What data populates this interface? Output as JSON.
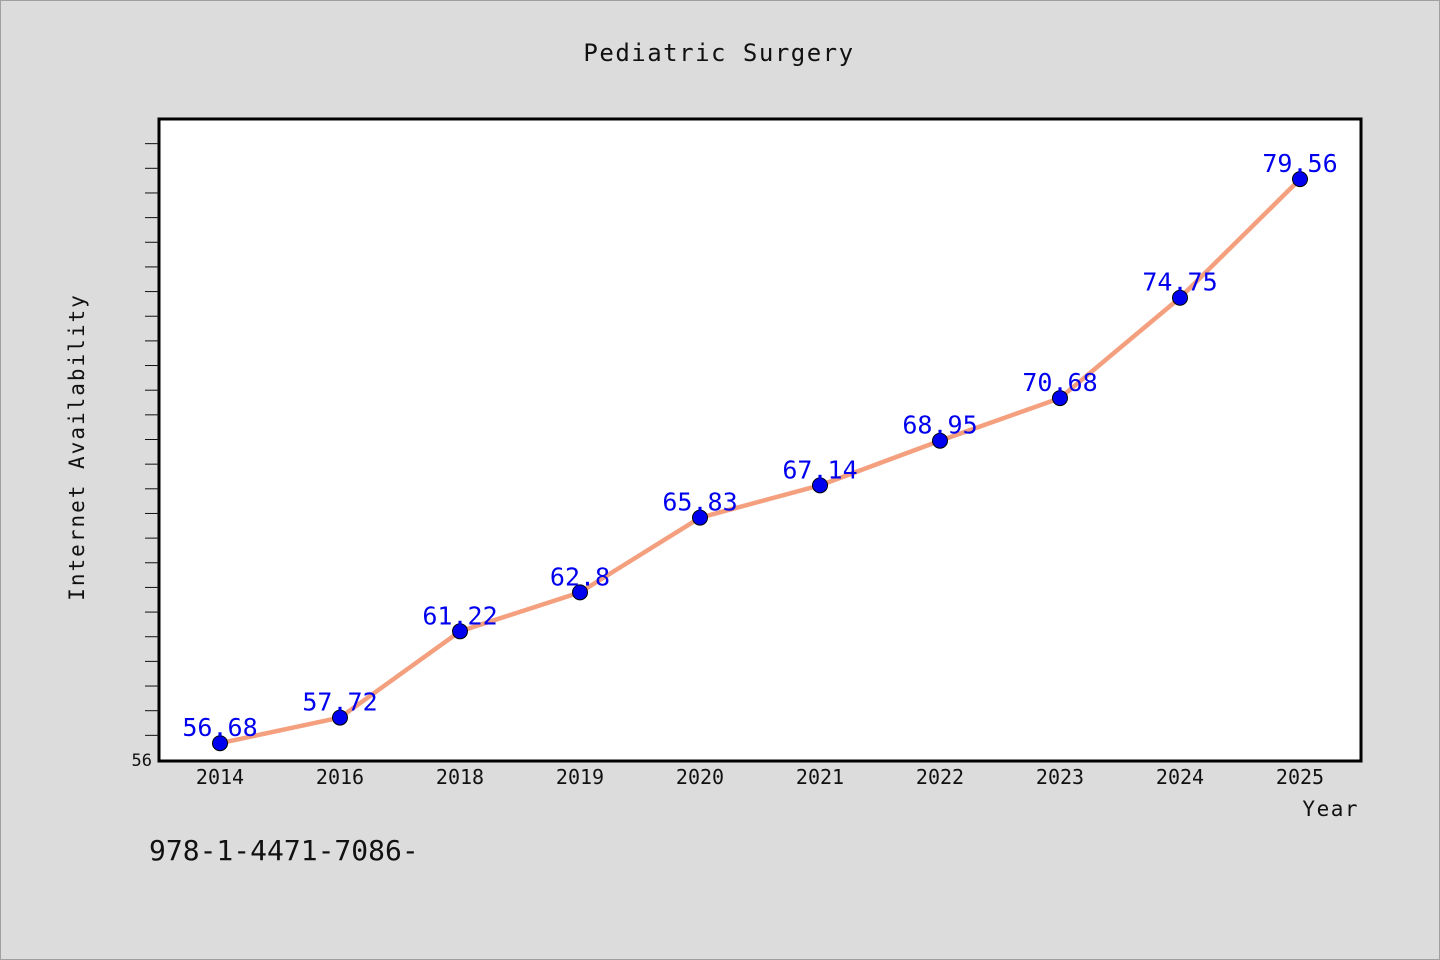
{
  "chart_data": {
    "type": "line",
    "title": "Pediatric Surgery",
    "xlabel": "Year",
    "ylabel": "Internet Availability",
    "categories": [
      "2014",
      "2016",
      "2018",
      "2019",
      "2020",
      "2021",
      "2022",
      "2023",
      "2024",
      "2025"
    ],
    "series": [
      {
        "values": [
          56.68,
          57.72,
          61.22,
          62.8,
          65.83,
          67.14,
          68.95,
          70.68,
          74.75,
          79.56
        ]
      }
    ],
    "data_labels": [
      "56.68",
      "57.72",
      "61.22",
      "62.8",
      "65.83",
      "67.14",
      "68.95",
      "70.68",
      "74.75",
      "79.56"
    ],
    "y_tick_labels": [
      "56"
    ],
    "ylim": [
      56,
      82
    ],
    "grid": false,
    "colors": {
      "line": "#f4a07e",
      "marker": "#0000ee",
      "data_label": "#0000ee",
      "plot_background": "#ffffff",
      "page_background": "#dcdcdc"
    }
  },
  "footnote": "978-1-4471-7086-"
}
